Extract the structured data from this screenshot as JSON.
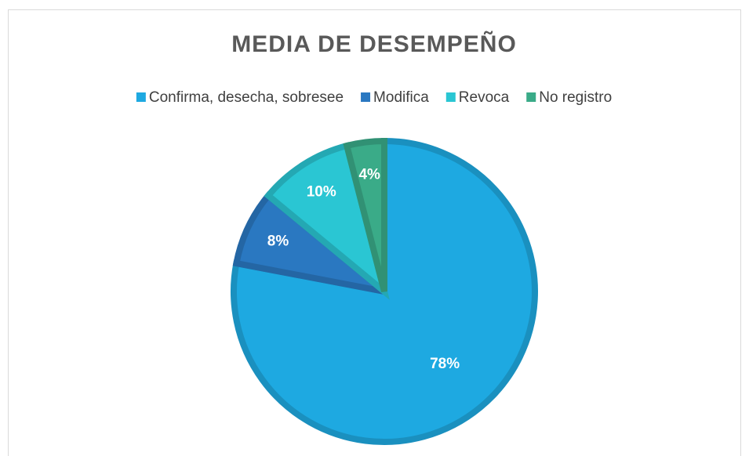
{
  "chart_data": {
    "type": "pie",
    "title": "MEDIA DE DESEMPEÑO",
    "categories": [
      "Confirma, desecha, sobresee",
      "Modifica",
      "Revoca",
      "No registro"
    ],
    "values": [
      78,
      8,
      10,
      4
    ],
    "value_labels": [
      "78%",
      "8%",
      "10%",
      "4%"
    ],
    "colors": [
      "#1ea9e1",
      "#2a78c1",
      "#2ac6d3",
      "#3aab88"
    ],
    "legend": "top"
  }
}
